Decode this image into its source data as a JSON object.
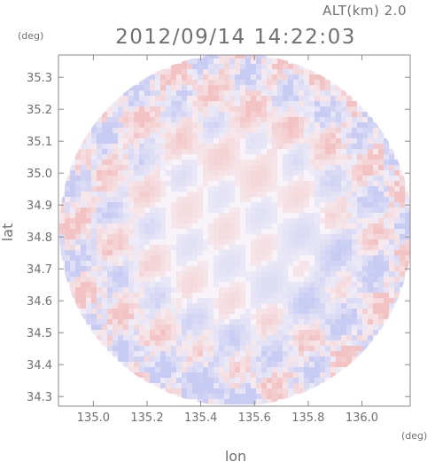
{
  "header": {
    "altitude_label": "ALT(km) 2.0",
    "timestamp": "2012/09/14 14:22:03"
  },
  "chart_data": {
    "type": "heatmap",
    "title": "2012/09/14 14:22:03",
    "subtitle": "ALT(km) 2.0",
    "xlabel": "lon",
    "ylabel": "lat",
    "x_unit": "(deg)",
    "y_unit": "(deg)",
    "xlim": [
      134.87,
      136.18
    ],
    "ylim": [
      34.27,
      35.37
    ],
    "xticks": [
      "135.0",
      "135.2",
      "135.4",
      "135.6",
      "135.8",
      "136.0"
    ],
    "yticks": [
      "34.3",
      "34.4",
      "34.5",
      "34.6",
      "34.7",
      "34.8",
      "34.9",
      "35.0",
      "35.1",
      "35.2",
      "35.3"
    ],
    "grid": false,
    "domain_shape": "circle",
    "colors": {
      "positive": "#f2b8b8",
      "negative": "#bfc4f2",
      "neutral": "#f7f3f8",
      "axis": "#808080"
    }
  }
}
